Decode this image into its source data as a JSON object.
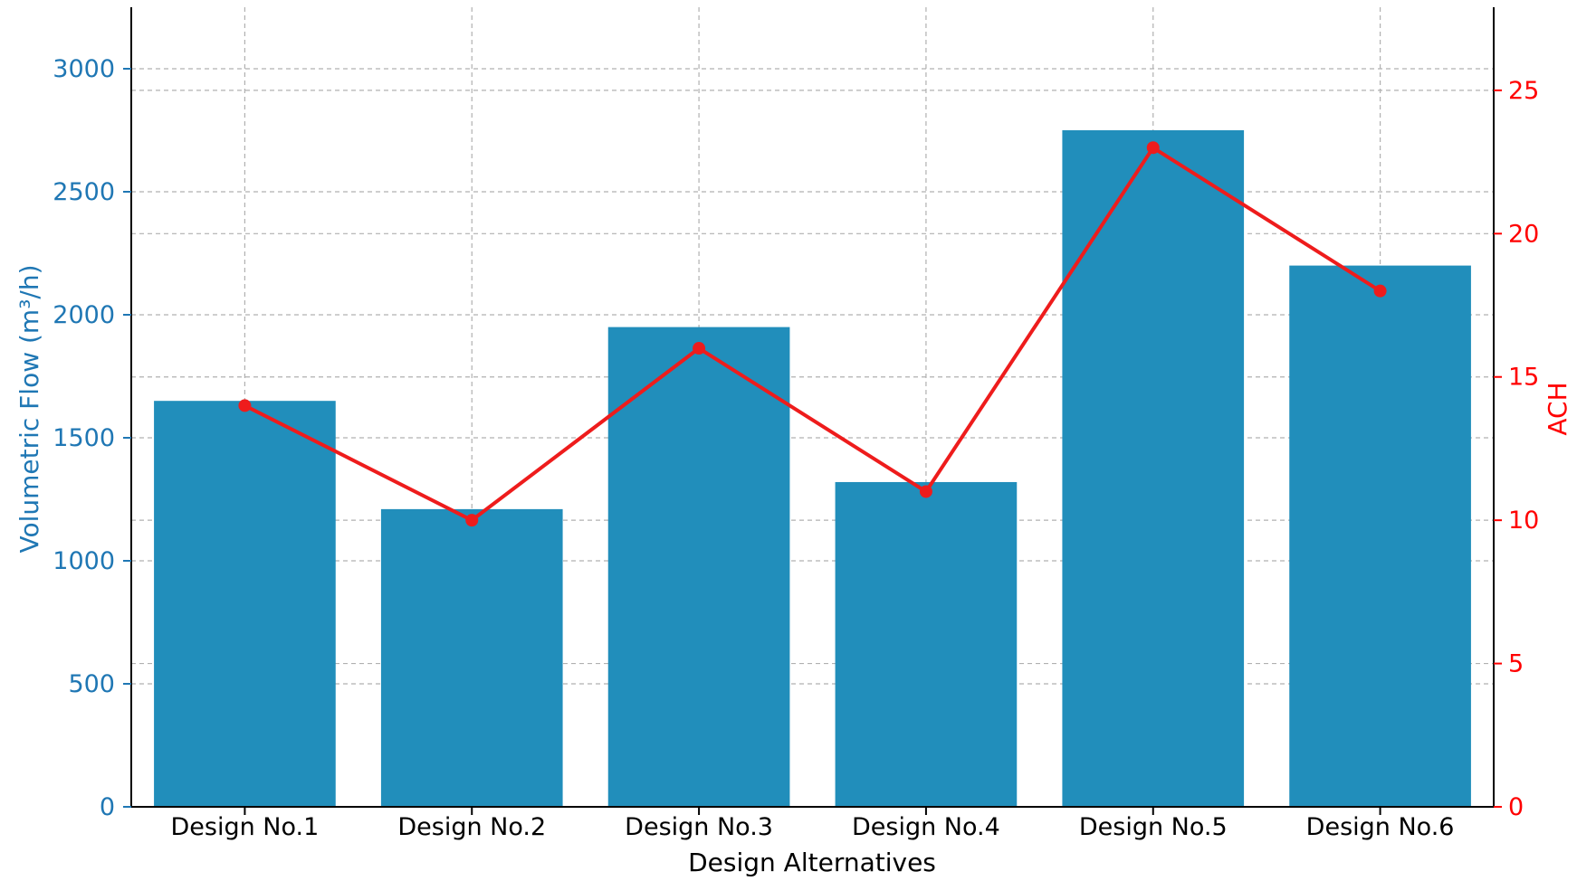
{
  "chart_data": {
    "type": "bar",
    "xlabel": "Design Alternatives",
    "categories": [
      "Design No.1",
      "Design No.2",
      "Design No.3",
      "Design No.4",
      "Design No.5",
      "Design No.6"
    ],
    "left_axis": {
      "label": "Volumetric Flow (m³/h)",
      "ylim": [
        0,
        3250
      ],
      "ticks": [
        0,
        500,
        1000,
        1500,
        2000,
        2500,
        3000
      ],
      "color": "#1f77b4"
    },
    "right_axis": {
      "label": "ACH",
      "ylim": [
        0,
        27.9
      ],
      "ticks": [
        0,
        5,
        10,
        15,
        20,
        25
      ],
      "color": "#ff0000"
    },
    "series": [
      {
        "type": "bar",
        "axis": "left",
        "values": [
          1650,
          1210,
          1950,
          1320,
          2750,
          2200
        ],
        "color": "#218ebb"
      },
      {
        "type": "line",
        "axis": "right",
        "values": [
          14,
          10,
          16,
          11,
          23,
          18
        ],
        "color": "#ee1c1c"
      }
    ],
    "grid": true
  }
}
